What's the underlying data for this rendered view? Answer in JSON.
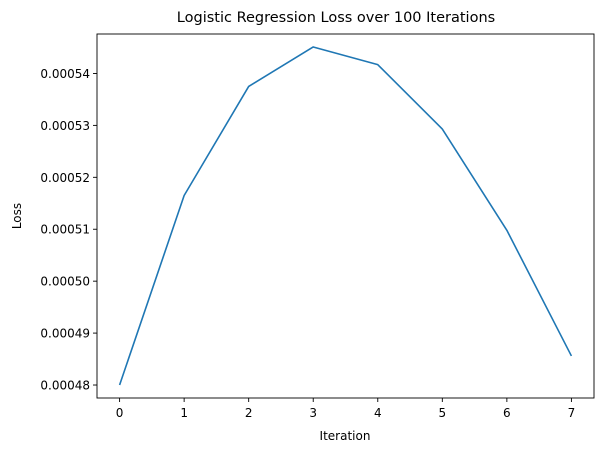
{
  "chart_data": {
    "type": "line",
    "title": "Logistic Regression Loss over 100 Iterations",
    "xlabel": "Iteration",
    "ylabel": "Loss",
    "x": [
      0,
      1,
      2,
      3,
      4,
      5,
      6,
      7
    ],
    "series": [
      {
        "values": [
          0.00048,
          0.0005165,
          0.0005375,
          0.0005451,
          0.0005417,
          0.0005293,
          0.0005098,
          0.0004856
        ],
        "color": "#1f77b4"
      }
    ],
    "xlim": [
      -0.35,
      7.35
    ],
    "ylim": [
      0.0004775,
      0.0005476
    ],
    "xticks": [
      0,
      1,
      2,
      3,
      4,
      5,
      6,
      7
    ],
    "xtick_labels": [
      "0",
      "1",
      "2",
      "3",
      "4",
      "5",
      "6",
      "7"
    ],
    "yticks": [
      0.00048,
      0.00049,
      0.0005,
      0.00051,
      0.00052,
      0.00053,
      0.00054
    ],
    "ytick_labels": [
      "0.00048",
      "0.00049",
      "0.00050",
      "0.00051",
      "0.00052",
      "0.00053",
      "0.00054"
    ],
    "grid": false,
    "legend": "none"
  }
}
